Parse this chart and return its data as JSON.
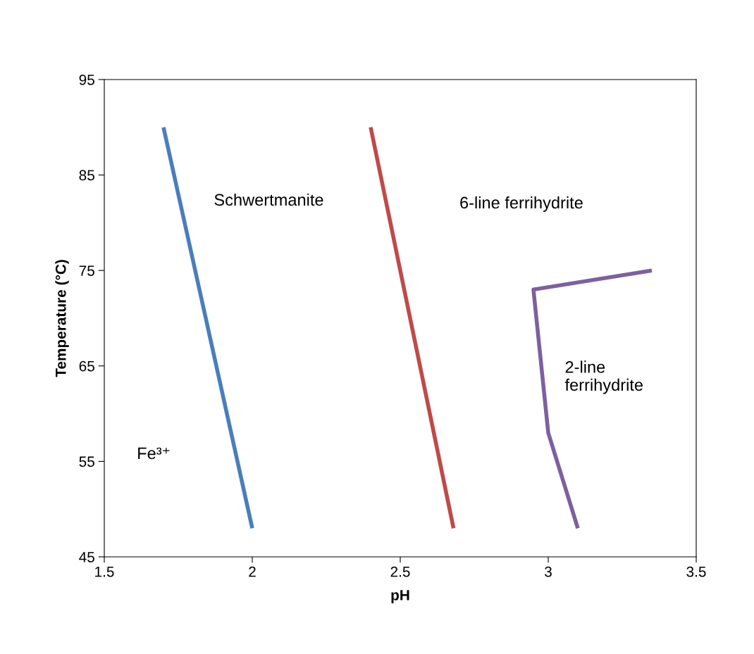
{
  "chart_data": {
    "type": "line",
    "xlabel": "pH",
    "ylabel": "Temperature (°C)",
    "series": [
      {
        "color": "#4a7ebb",
        "x": [
          1.7,
          2.0
        ],
        "values": [
          90,
          48
        ]
      },
      {
        "color": "#be4b48",
        "x": [
          2.4,
          2.68
        ],
        "values": [
          90,
          48
        ]
      },
      {
        "color": "#7d60a0",
        "x": [
          3.35,
          2.95,
          3.0,
          3.1
        ],
        "values": [
          75,
          73,
          58,
          48
        ]
      }
    ],
    "xlim": [
      1.5,
      3.5
    ],
    "xticks": [
      1.5,
      2,
      2.5,
      3,
      3.5
    ],
    "ylim": [
      45,
      95
    ],
    "yticks": [
      45,
      55,
      65,
      75,
      85,
      95
    ],
    "grid": false,
    "legend": false,
    "marker": "none",
    "line_style": "solid",
    "annotations": [
      "Schwertmanite",
      "6-line ferrihydrite",
      "2-line\nferrihydrite",
      "Fe³⁺"
    ]
  }
}
